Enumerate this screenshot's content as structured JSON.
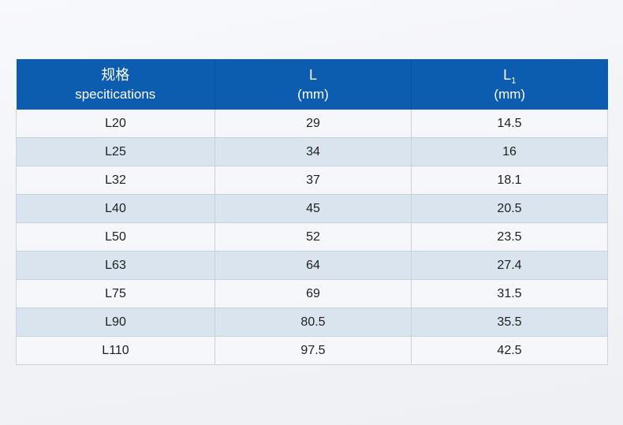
{
  "table": {
    "header": {
      "col1": {
        "line1": "规格",
        "line2": "specitications"
      },
      "col2": {
        "line1": "L",
        "line2": "(mm)"
      },
      "col3": {
        "line1": "L",
        "sub": "1",
        "line2": "(mm)"
      }
    },
    "rows": [
      [
        "L20",
        "29",
        "14.5"
      ],
      [
        "L25",
        "34",
        "16"
      ],
      [
        "L32",
        "37",
        "18.1"
      ],
      [
        "L40",
        "45",
        "20.5"
      ],
      [
        "L50",
        "52",
        "23.5"
      ],
      [
        "L63",
        "64",
        "27.4"
      ],
      [
        "L75",
        "69",
        "31.5"
      ],
      [
        "L90",
        "80.5",
        "35.5"
      ],
      [
        "L110",
        "97.5",
        "42.5"
      ]
    ],
    "colors": {
      "header_bg": "#0c5cb0",
      "header_text": "#ffffff",
      "header_divider": "#0a52a0",
      "row_odd_bg": "#f6f7fa",
      "row_even_bg": "#d9e4ef",
      "body_text": "#1f1f1f",
      "cell_border": "#cbd0d7"
    }
  }
}
